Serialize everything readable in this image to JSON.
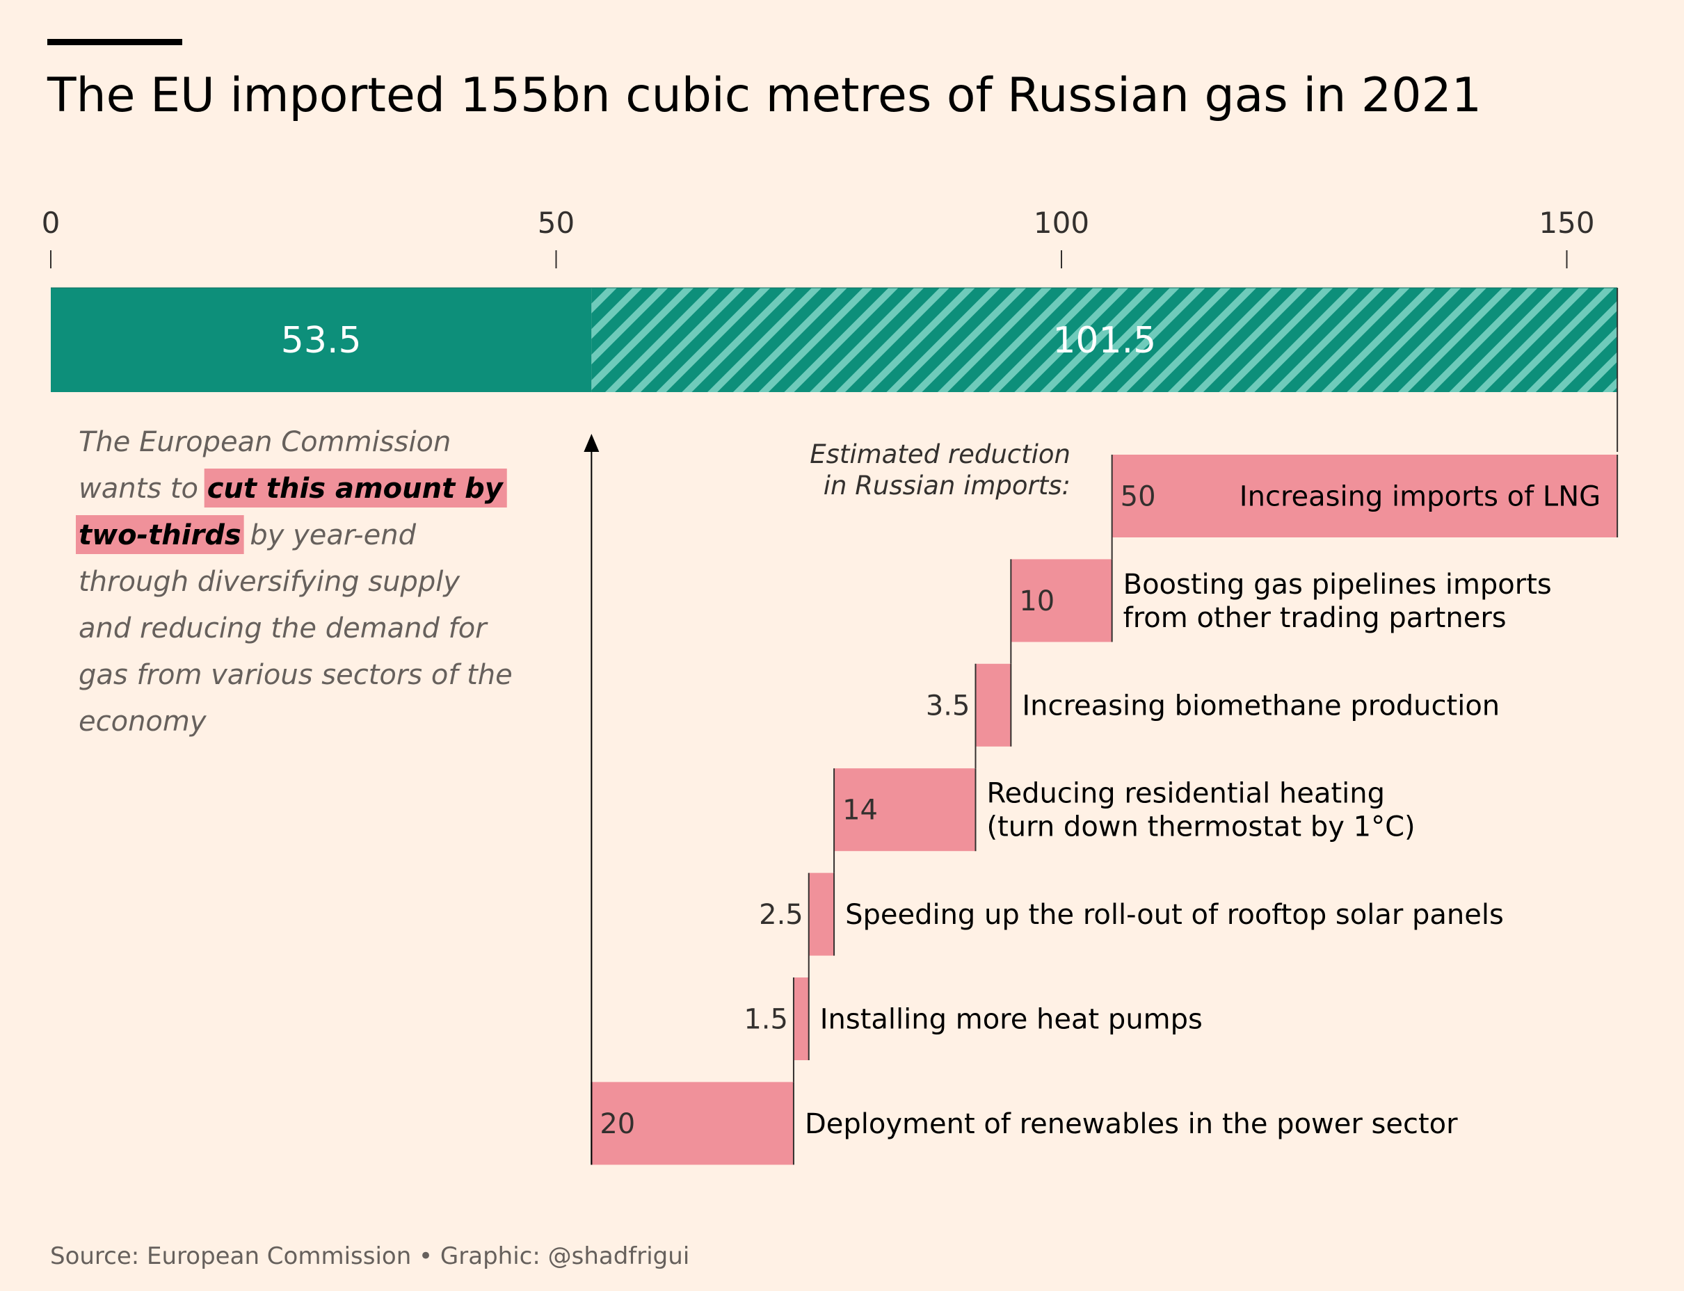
{
  "chart_data": {
    "type": "bar",
    "title": "The EU imported 155bn cubic metres of Russian gas in 2021",
    "xlim": [
      0,
      155
    ],
    "xticks": [
      0,
      50,
      100,
      150
    ],
    "xtick_labels": [
      "0",
      "50",
      "100",
      "150"
    ],
    "total_bar": [
      {
        "name": "remaining",
        "value": 53.5,
        "label": "53.5",
        "color": "#0d8f7a",
        "pattern": "solid"
      },
      {
        "name": "reduction",
        "value": 101.5,
        "label": "101.5",
        "color": "#0d8f7a",
        "pattern": "hatched"
      }
    ],
    "reduction_heading": [
      "Estimated reduction",
      "in Russian imports:"
    ],
    "reductions": [
      {
        "value": 50,
        "value_label": "50",
        "label": [
          "Increasing imports of LNG"
        ],
        "label_inside": true
      },
      {
        "value": 10,
        "value_label": "10",
        "label": [
          "Boosting gas pipelines imports",
          "from other trading partners"
        ],
        "label_inside": false
      },
      {
        "value": 3.5,
        "value_label": "3.5",
        "label": [
          "Increasing biomethane production"
        ],
        "label_inside": false
      },
      {
        "value": 14,
        "value_label": "14",
        "label": [
          "Reducing residential heating",
          "(turn down thermostat by 1°C)"
        ],
        "label_inside": false
      },
      {
        "value": 2.5,
        "value_label": "2.5",
        "label": [
          "Speeding up the roll-out of rooftop solar panels"
        ],
        "label_inside": false
      },
      {
        "value": 1.5,
        "value_label": "1.5",
        "label": [
          "Installing more heat pumps"
        ],
        "label_inside": false
      },
      {
        "value": 20,
        "value_label": "20",
        "label": [
          "Deployment of renewables in the power sector"
        ],
        "label_inside": false
      }
    ],
    "annotation": {
      "lines": [
        [
          {
            "t": "The European Commission",
            "hl": false
          }
        ],
        [
          {
            "t": "wants to ",
            "hl": false
          },
          {
            "t": "cut this amount by",
            "hl": true
          }
        ],
        [
          {
            "t": "two-thirds",
            "hl": true
          },
          {
            "t": " by year-end",
            "hl": false
          }
        ],
        [
          {
            "t": "through diversifying supply",
            "hl": false
          }
        ],
        [
          {
            "t": "and reducing the demand for",
            "hl": false
          }
        ],
        [
          {
            "t": "gas from various sectors of the",
            "hl": false
          }
        ],
        [
          {
            "t": "economy",
            "hl": false
          }
        ]
      ]
    },
    "colors": {
      "solid": "#0d8f7a",
      "hatch_light": "#6fcbbb",
      "reduction": "#f0919a",
      "highlight": "#f0919a",
      "axis": "#33302e"
    },
    "source": "Source: European Commission • Graphic: @shadfrigui"
  }
}
